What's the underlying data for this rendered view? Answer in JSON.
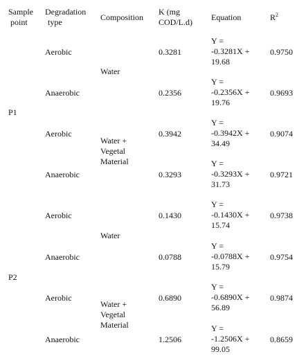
{
  "table": {
    "headers": {
      "sample_point": [
        "Sample",
        "point"
      ],
      "degradation_type": [
        "Degradation",
        "type"
      ],
      "composition": "Composition",
      "k": [
        "K  (mg",
        "COD/L.d)"
      ],
      "equation": "Equation",
      "r2_base": "R",
      "r2_sup": "2"
    },
    "sample_points": [
      "P1",
      "P2"
    ],
    "compositions": [
      [
        "Water"
      ],
      [
        "Water +",
        "Vegetal",
        "Material"
      ],
      [
        "Water"
      ],
      [
        "Water +",
        "Vegetal",
        "Material"
      ]
    ],
    "rows": [
      {
        "type": "Aerobic",
        "k": "0.3281",
        "equation": [
          "Y =",
          "-0.3281X +",
          "19.68"
        ],
        "r2": "0.9750"
      },
      {
        "type": "Anaerobic",
        "k": "0.2356",
        "equation": [
          "Y =",
          "-0.2356X +",
          "19.76"
        ],
        "r2": "0.9693"
      },
      {
        "type": "Aerobic",
        "k": "0.3942",
        "equation": [
          "Y =",
          "-0.3942X +",
          "34.49"
        ],
        "r2": "0.9074"
      },
      {
        "type": "Anaerobic",
        "k": "0.3293",
        "equation": [
          "Y =",
          "-0.3293X +",
          "31.73"
        ],
        "r2": "0.9721"
      },
      {
        "type": "Aerobic",
        "k": "0.1430",
        "equation": [
          "Y =",
          "-0.1430X +",
          "15.74"
        ],
        "r2": "0.9738"
      },
      {
        "type": "Anaerobic",
        "k": "0.0788",
        "equation": [
          "Y =",
          "-0.0788X +",
          "15.79"
        ],
        "r2": "0.9754"
      },
      {
        "type": "Aerobic",
        "k": "0.6890",
        "equation": [
          "Y =",
          "-0.6890X +",
          "56.89"
        ],
        "r2": "0.9874"
      },
      {
        "type": "Anaerobic",
        "k": "1.2506",
        "equation": [
          "Y =",
          "-1.2506X +",
          "99.05"
        ],
        "r2": "0.8659"
      }
    ]
  }
}
